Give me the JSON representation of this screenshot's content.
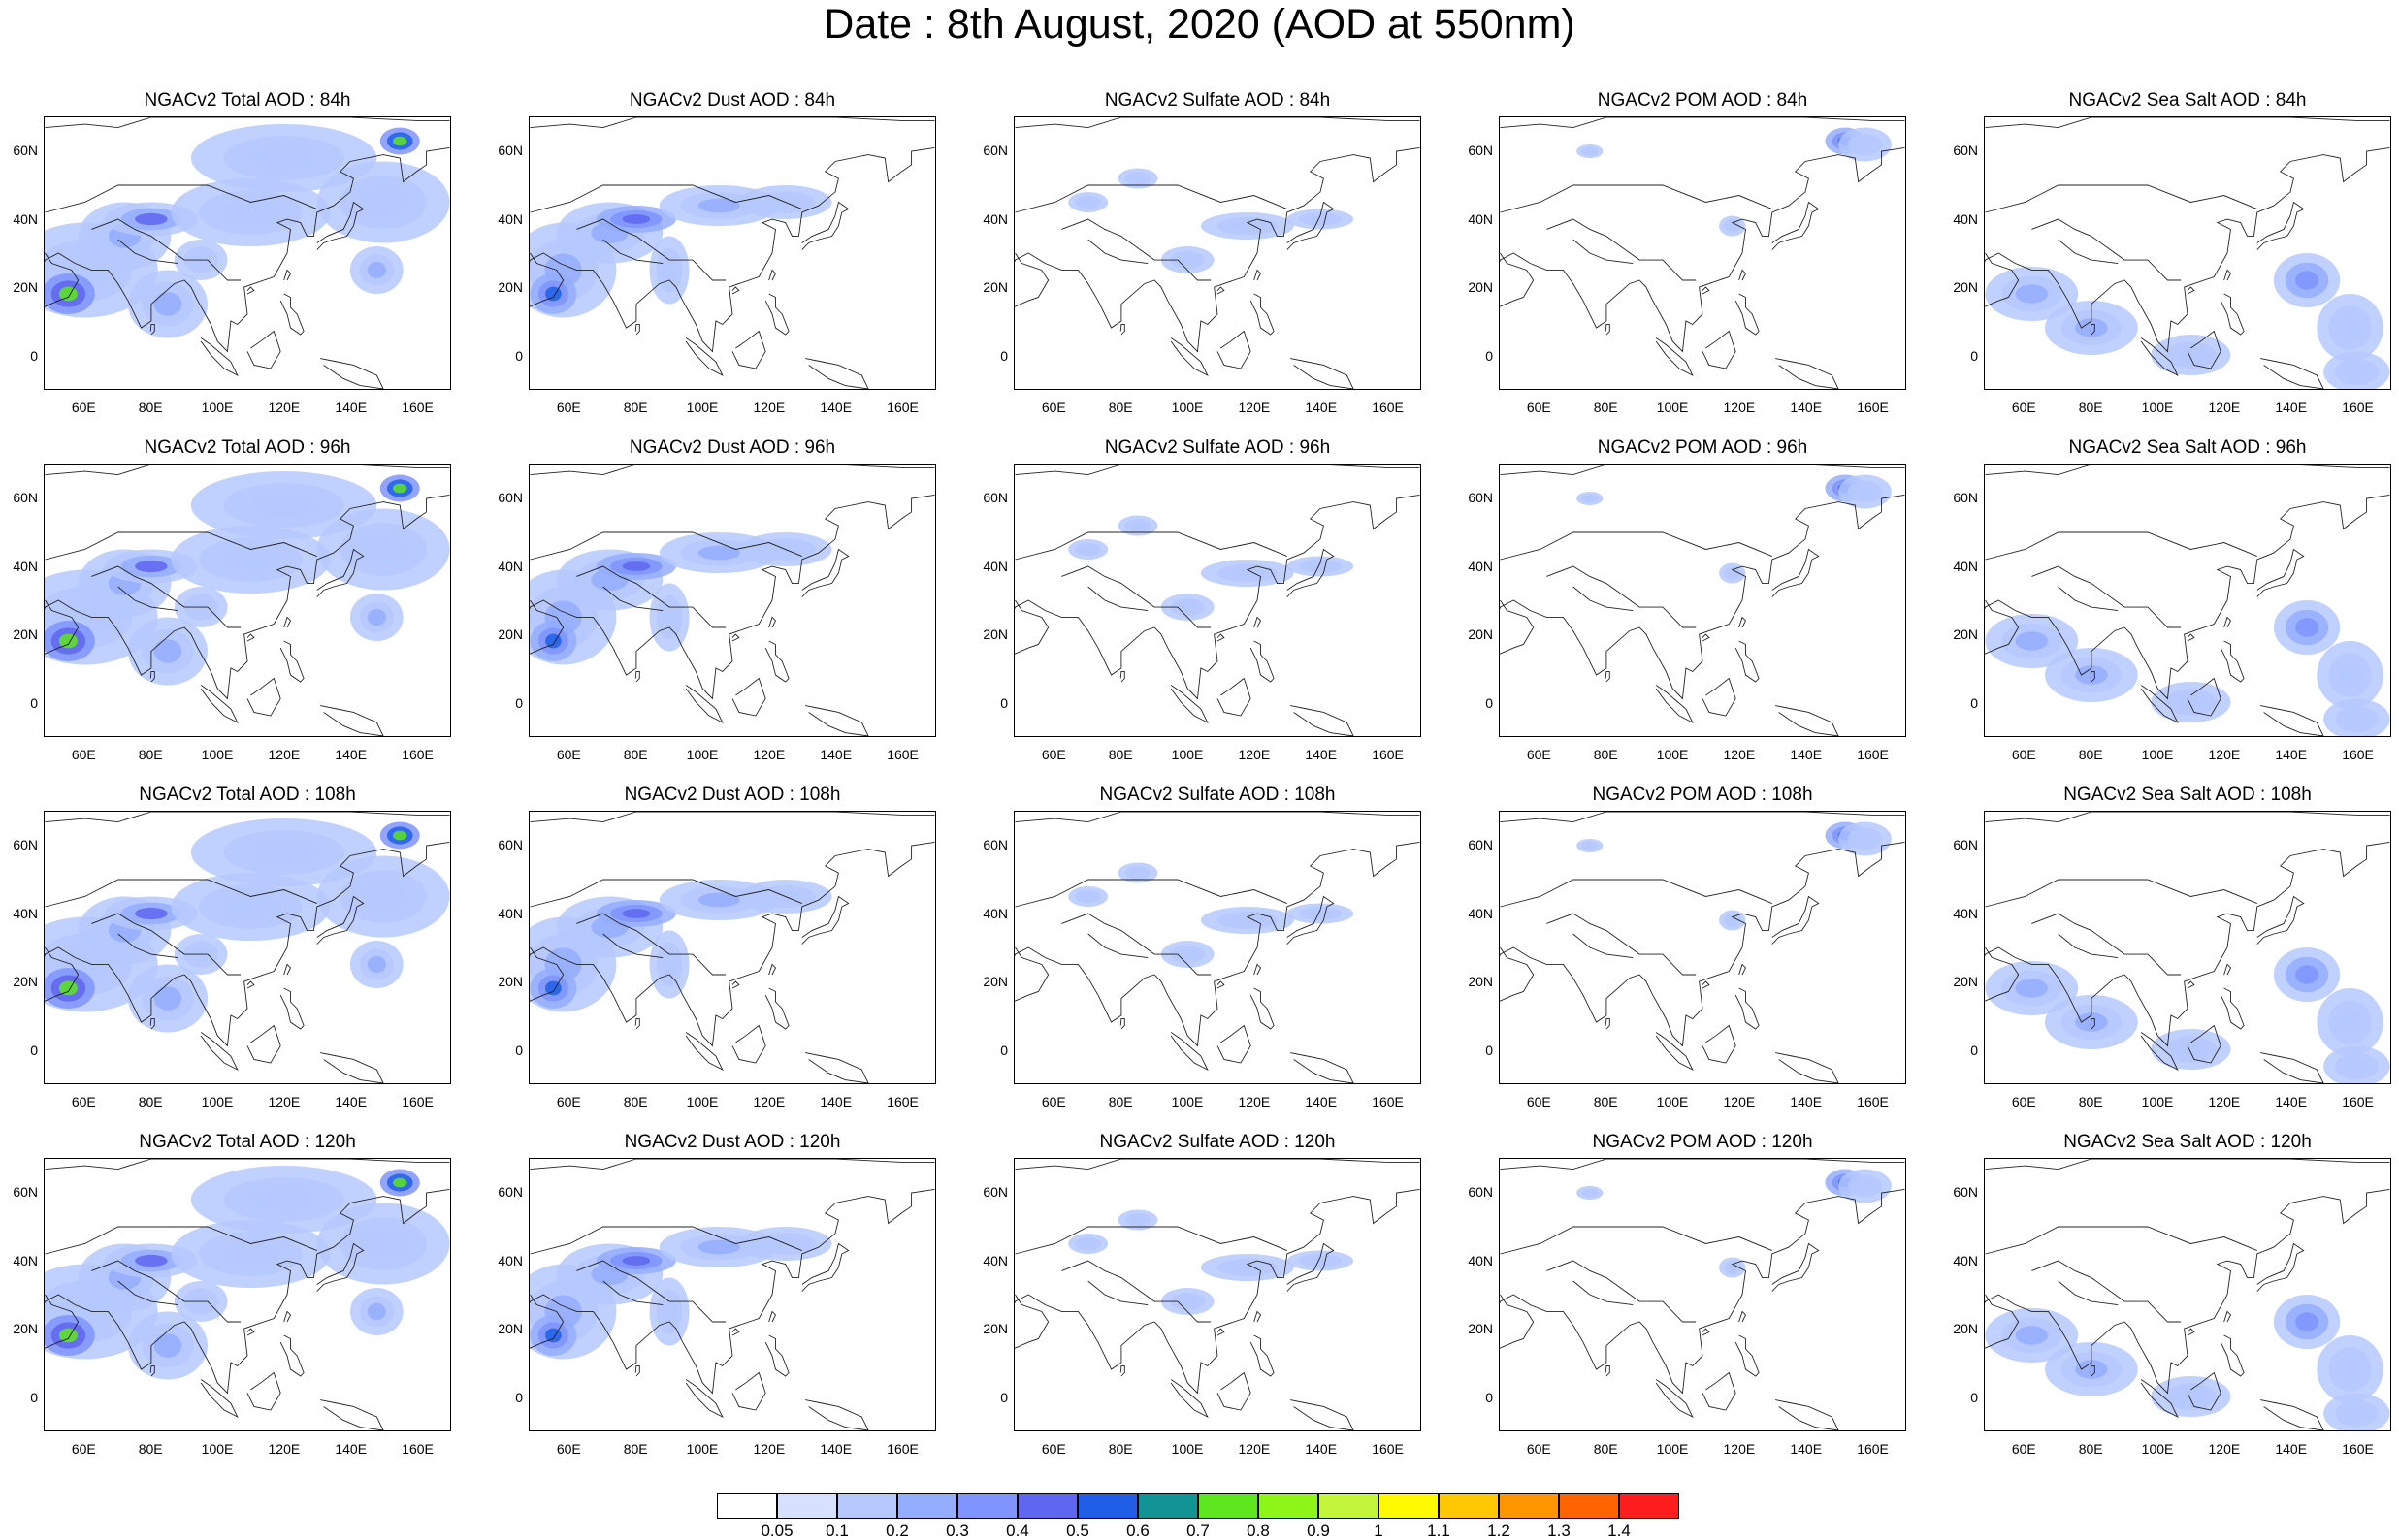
{
  "title": "Date : 8th August, 2020 (AOD at 550nm)",
  "map_extent": {
    "lon_min": 48,
    "lon_max": 170,
    "lat_min": -10,
    "lat_max": 70
  },
  "lat_ticks": [
    "60N",
    "40N",
    "20N",
    "0"
  ],
  "lon_ticks": [
    "60E",
    "80E",
    "100E",
    "120E",
    "140E",
    "160E"
  ],
  "species": [
    "total",
    "dust",
    "sulfate",
    "pom",
    "seasalt"
  ],
  "panels": [
    [
      "NGACv2 Total AOD : 84h",
      "NGACv2 Dust AOD : 84h",
      "NGACv2 Sulfate AOD : 84h",
      "NGACv2 POM AOD : 84h",
      "NGACv2 Sea Salt AOD : 84h"
    ],
    [
      "NGACv2 Total AOD : 96h",
      "NGACv2 Dust AOD : 96h",
      "NGACv2 Sulfate AOD : 96h",
      "NGACv2 POM AOD : 96h",
      "NGACv2 Sea Salt AOD : 96h"
    ],
    [
      "NGACv2 Total AOD : 108h",
      "NGACv2 Dust AOD : 108h",
      "NGACv2 Sulfate AOD : 108h",
      "NGACv2 POM AOD : 108h",
      "NGACv2 Sea Salt AOD : 108h"
    ],
    [
      "NGACv2 Total AOD : 120h",
      "NGACv2 Dust AOD : 120h",
      "NGACv2 Sulfate AOD : 120h",
      "NGACv2 POM AOD : 120h",
      "NGACv2 Sea Salt  AOD : 120h"
    ]
  ],
  "colorbar": {
    "labels": [
      "0.05",
      "0.1",
      "0.2",
      "0.3",
      "0.4",
      "0.5",
      "0.6",
      "0.7",
      "0.8",
      "0.9",
      "1",
      "1.1",
      "1.2",
      "1.3",
      "1.4"
    ],
    "colors": [
      "#ffffff",
      "#d6e0ff",
      "#b5c8ff",
      "#94adff",
      "#7f94ff",
      "#5f66ef",
      "#1f5fe8",
      "#129494",
      "#5de61d",
      "#8ef519",
      "#c3f53d",
      "#fffa00",
      "#ffc800",
      "#ff9600",
      "#ff6400",
      "#ff1e1e"
    ]
  },
  "plumes": {
    "total": [
      [
        60,
        25,
        22,
        14,
        0.18
      ],
      [
        72,
        35,
        14,
        10,
        0.2
      ],
      [
        55,
        18,
        8,
        6,
        0.7
      ],
      [
        80,
        40,
        14,
        5,
        0.4
      ],
      [
        110,
        42,
        24,
        10,
        0.18
      ],
      [
        150,
        45,
        20,
        12,
        0.15
      ],
      [
        148,
        25,
        8,
        7,
        0.25
      ],
      [
        155,
        63,
        6,
        4,
        0.75
      ],
      [
        85,
        15,
        12,
        10,
        0.2
      ],
      [
        120,
        58,
        28,
        10,
        0.13
      ],
      [
        95,
        28,
        8,
        6,
        0.15
      ]
    ],
    "dust": [
      [
        58,
        25,
        16,
        14,
        0.2
      ],
      [
        55,
        18,
        7,
        6,
        0.5
      ],
      [
        72,
        36,
        16,
        9,
        0.2
      ],
      [
        80,
        40,
        12,
        4,
        0.45
      ],
      [
        105,
        44,
        18,
        6,
        0.2
      ],
      [
        125,
        45,
        14,
        5,
        0.12
      ],
      [
        90,
        25,
        6,
        10,
        0.15
      ]
    ],
    "sulfate": [
      [
        118,
        38,
        14,
        4,
        0.13
      ],
      [
        140,
        40,
        10,
        3,
        0.12
      ],
      [
        100,
        28,
        8,
        4,
        0.12
      ],
      [
        85,
        52,
        6,
        3,
        0.11
      ],
      [
        70,
        45,
        6,
        3,
        0.11
      ]
    ],
    "pom": [
      [
        152,
        63,
        6,
        4,
        0.5
      ],
      [
        158,
        62,
        8,
        5,
        0.15
      ],
      [
        118,
        38,
        4,
        3,
        0.11
      ],
      [
        75,
        60,
        4,
        2,
        0.11
      ]
    ],
    "seasalt": [
      [
        62,
        18,
        14,
        8,
        0.2
      ],
      [
        80,
        8,
        14,
        8,
        0.2
      ],
      [
        145,
        22,
        10,
        8,
        0.3
      ],
      [
        158,
        8,
        10,
        10,
        0.15
      ],
      [
        110,
        0,
        12,
        6,
        0.13
      ],
      [
        160,
        -5,
        10,
        6,
        0.15
      ]
    ]
  }
}
